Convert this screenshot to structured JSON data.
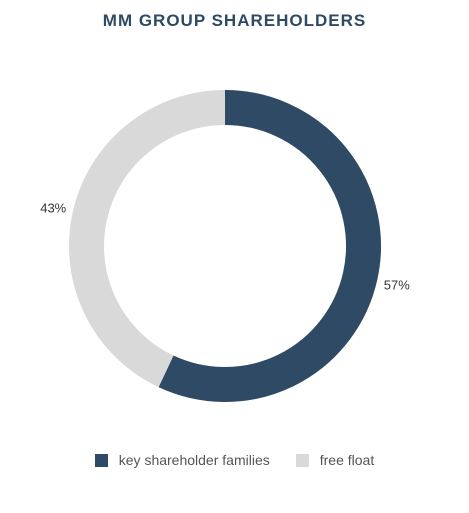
{
  "chart_data": {
    "type": "pie",
    "title": "MM GROUP SHAREHOLDERS",
    "categories": [
      "key shareholder families",
      "free float"
    ],
    "values": [
      57,
      43
    ],
    "labels": [
      "57%",
      "43%"
    ],
    "colors": [
      "#2e4a64",
      "#d9d9d9"
    ],
    "donut": true,
    "legend_position": "bottom"
  }
}
